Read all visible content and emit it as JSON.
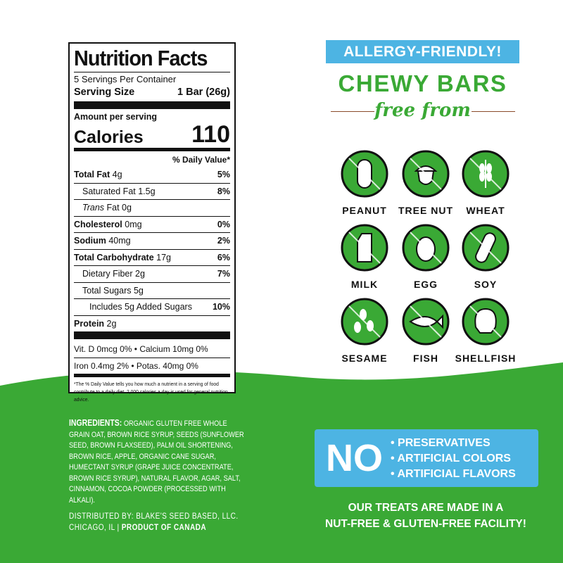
{
  "colors": {
    "green": "#3aa935",
    "blue": "#4db4e3",
    "dark": "#111111"
  },
  "nutrition": {
    "title": "Nutrition Facts",
    "servings": "5 Servings Per Container",
    "serving_size_label": "Serving Size",
    "serving_size_value": "1 Bar (26g)",
    "amount_per_serving": "Amount per serving",
    "calories_label": "Calories",
    "calories_value": "110",
    "dv_header": "% Daily Value*",
    "rows": [
      {
        "name": "Total Fat",
        "amount": "4g",
        "dv": "5%",
        "bold": true,
        "indent": 0
      },
      {
        "name": "Saturated Fat",
        "amount": "1.5g",
        "dv": "8%",
        "bold": false,
        "indent": 1
      },
      {
        "name": "Trans",
        "amount": "Fat 0g",
        "dv": "",
        "bold": false,
        "indent": 1
      },
      {
        "name": "Cholesterol",
        "amount": "0mg",
        "dv": "0%",
        "bold": true,
        "indent": 0
      },
      {
        "name": "Sodium",
        "amount": "40mg",
        "dv": "2%",
        "bold": true,
        "indent": 0
      },
      {
        "name": "Total Carbohydrate",
        "amount": "17g",
        "dv": "6%",
        "bold": true,
        "indent": 0
      },
      {
        "name": "Dietary Fiber",
        "amount": "2g",
        "dv": "7%",
        "bold": false,
        "indent": 1
      },
      {
        "name": "Total Sugars",
        "amount": "5g",
        "dv": "",
        "bold": false,
        "indent": 1
      },
      {
        "name": "Includes 5g Added Sugars",
        "amount": "",
        "dv": "10%",
        "bold": false,
        "indent": 2
      },
      {
        "name": "Protein",
        "amount": "2g",
        "dv": "",
        "bold": true,
        "indent": 0
      }
    ],
    "vitamins_1": "Vit. D 0mcg  0%   •   Calcium 10mg 0%",
    "vitamins_2": "Iron 0.4mg  2%   •   Potas. 40mg 0%",
    "footnote": "*The % Daily Value tells you how much a nutrient in a serving of food contribute to a daily diet. 2,000 calories a day is used for general nutrition advice."
  },
  "ingredients": {
    "label": "INGREDIENTS:",
    "text": " ORGANIC GLUTEN FREE WHOLE GRAIN OAT, BROWN RICE SYRUP, SEEDS (SUNFLOWER SEED, BROWN FLAXSEED), PALM OIL SHORTENING, BROWN RICE, APPLE, ORGANIC CANE SUGAR, HUMECTANT SYRUP (GRAPE JUICE CONCENTRATE, BROWN RICE SYRUP), NATURAL FLAVOR, AGAR, SALT, CINNAMON, COCOA POWDER (PROCESSED WITH ALKALI)."
  },
  "distributor": {
    "line1": "DISTRIBUTED BY: BLAKE'S SEED BASED, LLC.",
    "city": "CHICAGO, IL | ",
    "origin": "PRODUCT OF CANADA"
  },
  "header": {
    "badge": "ALLERGY-FRIENDLY!",
    "title": "CHEWY BARS",
    "subtitle": "free from"
  },
  "allergens": [
    {
      "label": "PEANUT",
      "icon": "peanut-icon"
    },
    {
      "label": "TREE NUT",
      "icon": "acorn-icon"
    },
    {
      "label": "WHEAT",
      "icon": "wheat-icon"
    },
    {
      "label": "MILK",
      "icon": "milk-carton-icon"
    },
    {
      "label": "EGG",
      "icon": "egg-icon"
    },
    {
      "label": "SOY",
      "icon": "soybean-icon"
    },
    {
      "label": "SESAME",
      "icon": "sesame-icon"
    },
    {
      "label": "FISH",
      "icon": "fish-icon"
    },
    {
      "label": "SHELLFISH",
      "icon": "shell-icon"
    }
  ],
  "no_box": {
    "no": "NO",
    "items": [
      "• PRESERVATIVES",
      "• ARTIFICIAL COLORS",
      "• ARTIFICIAL FLAVORS"
    ]
  },
  "facility": {
    "line1": "OUR TREATS ARE MADE IN A",
    "line2": "NUT-FREE & GLUTEN-FREE FACILITY!"
  }
}
